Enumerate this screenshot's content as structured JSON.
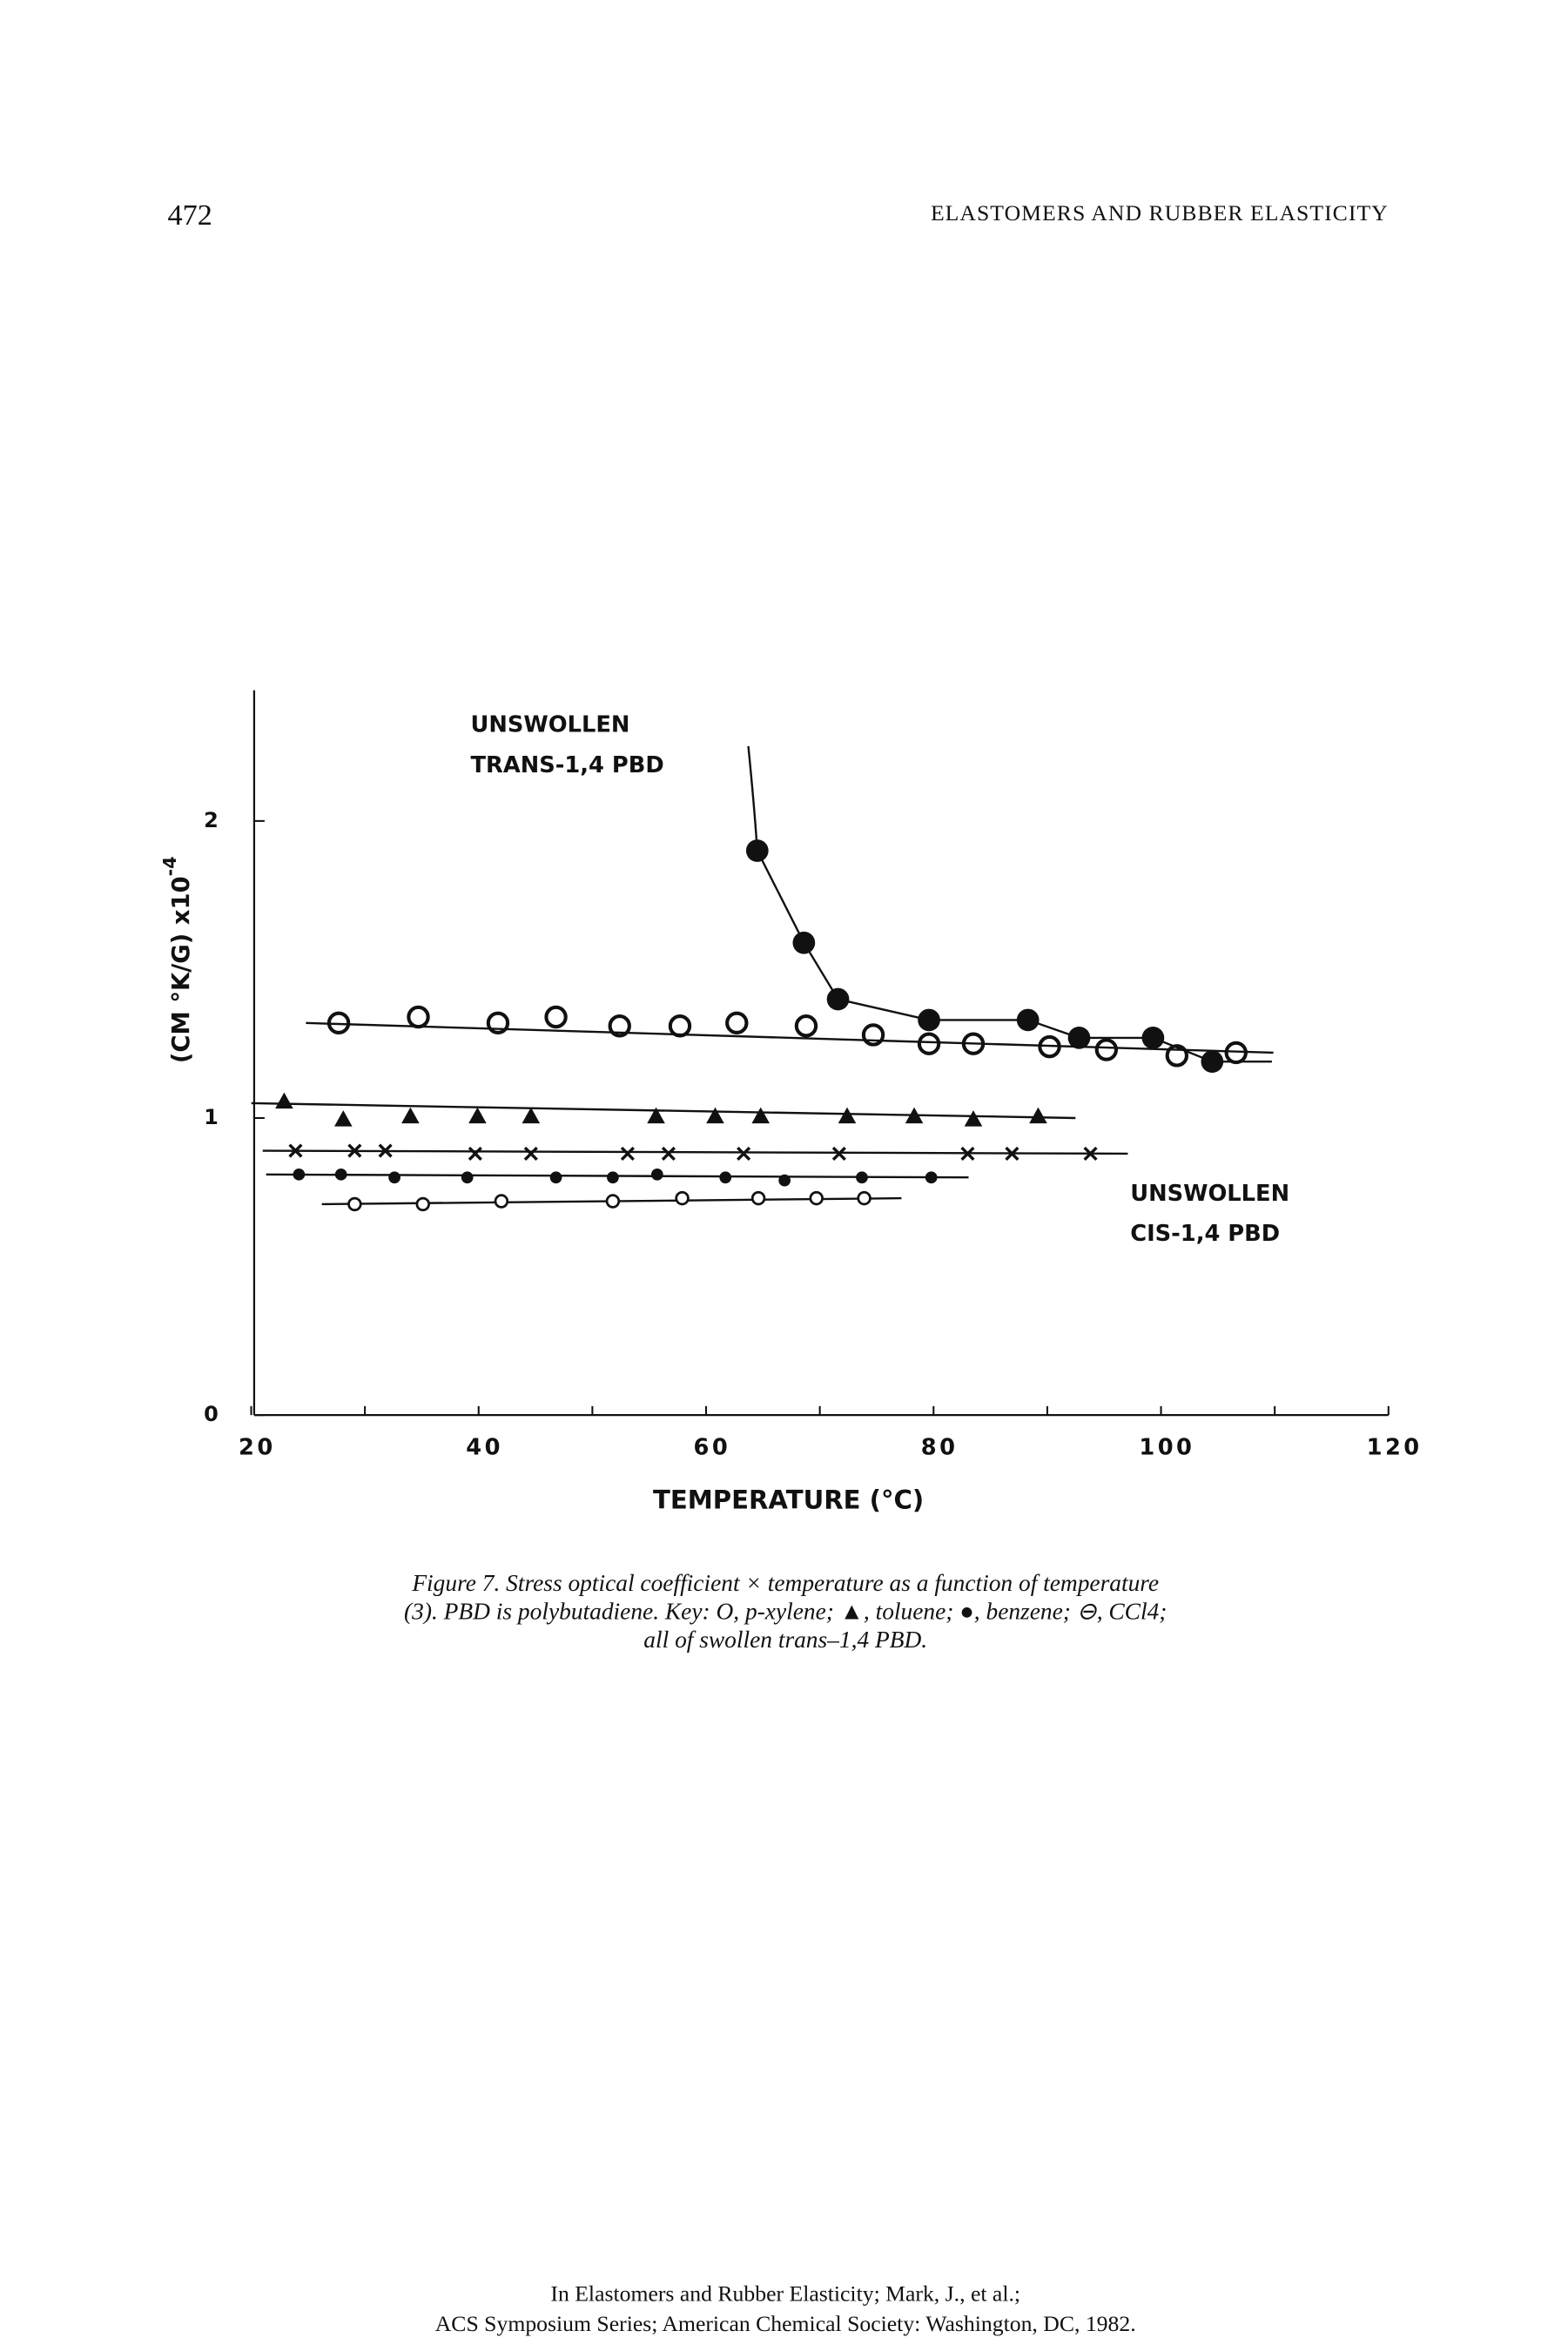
{
  "header": {
    "page_number": "472",
    "running_title": "ELASTOMERS AND RUBBER ELASTICITY"
  },
  "chart_data": {
    "type": "scatter",
    "annotations": [
      [
        "UNSWOLLEN",
        "TRANS-1,4 PBD"
      ],
      [
        "UNSWOLLEN",
        "CIS-1,4 PBD"
      ]
    ],
    "xlabel": "TEMPERATURE (°C)",
    "ylabel": "(CM °K/G)  x10",
    "ylabel_exponent": "-4",
    "xlim": [
      20,
      120
    ],
    "ylim": [
      0,
      2.44
    ],
    "xticks": [
      20,
      40,
      60,
      80,
      100,
      120
    ],
    "xminor_ticks": [
      30,
      50,
      70,
      90,
      110
    ],
    "yticks": [
      0,
      1,
      2
    ],
    "series": [
      {
        "marker": "open-circle",
        "size": 6.5,
        "fit": "line",
        "color": "#111",
        "x": [
          27.7,
          34.7,
          41.7,
          46.8,
          52.4,
          57.7,
          62.7,
          68.8,
          74.7,
          79.6,
          83.5,
          90.2,
          95.2,
          101.4,
          106.6
        ],
        "values": [
          1.32,
          1.34,
          1.32,
          1.34,
          1.31,
          1.31,
          1.32,
          1.31,
          1.28,
          1.25,
          1.25,
          1.24,
          1.23,
          1.21,
          1.22
        ]
      },
      {
        "marker": "dot",
        "size": 7.5,
        "fit": "curve",
        "color": "#111",
        "x": [
          64.5,
          68.6,
          71.6,
          79.6,
          88.3,
          92.8,
          99.3,
          104.5
        ],
        "values": [
          1.9,
          1.59,
          1.4,
          1.33,
          1.33,
          1.27,
          1.27,
          1.19
        ]
      },
      {
        "name": "toluene",
        "marker": "triangle",
        "size": 6,
        "fit": "line",
        "color": "#111",
        "x": [
          22.9,
          28.1,
          34.0,
          39.9,
          44.6,
          55.6,
          60.8,
          64.8,
          72.4,
          78.3,
          83.5,
          89.2
        ],
        "values": [
          1.05,
          0.99,
          1.0,
          1.0,
          1.0,
          1.0,
          1.0,
          1.0,
          1.0,
          1.0,
          0.99,
          1.0
        ]
      },
      {
        "marker": "x",
        "size": 4,
        "fit": "line",
        "color": "#111",
        "x": [
          23.9,
          29.1,
          31.8,
          39.7,
          44.6,
          53.1,
          56.7,
          63.3,
          71.7,
          83.0,
          86.9,
          93.8
        ],
        "values": [
          0.89,
          0.89,
          0.89,
          0.88,
          0.88,
          0.88,
          0.88,
          0.88,
          0.88,
          0.88,
          0.88,
          0.88
        ]
      },
      {
        "name": "benzene",
        "marker": "dot",
        "size": 4,
        "fit": "line",
        "color": "#111",
        "x": [
          24.2,
          27.9,
          32.6,
          39.0,
          46.8,
          51.8,
          55.7,
          61.7,
          66.9,
          73.7,
          79.8
        ],
        "values": [
          0.81,
          0.81,
          0.8,
          0.8,
          0.8,
          0.8,
          0.81,
          0.8,
          0.79,
          0.8,
          0.8
        ]
      },
      {
        "name": "CCl4",
        "marker": "barred-circle",
        "size": 4,
        "fit": "line",
        "color": "#111",
        "x": [
          29.1,
          35.1,
          42.0,
          51.8,
          57.9,
          64.6,
          69.7,
          73.9
        ],
        "values": [
          0.71,
          0.71,
          0.72,
          0.72,
          0.73,
          0.73,
          0.73,
          0.73
        ]
      }
    ]
  },
  "caption": [
    "Figure 7.  Stress optical coefficient × temperature as a function of temperature",
    "(3).  PBD is polybutadiene.  Key: O, p-xylene; ▲, toluene; ●, benzene; ⊖, CCl4;",
    "all of swollen trans–1,4 PBD."
  ],
  "footer": [
    "In Elastomers and Rubber Elasticity; Mark, J., et al.;",
    "ACS Symposium Series; American Chemical Society: Washington, DC, 1982."
  ]
}
